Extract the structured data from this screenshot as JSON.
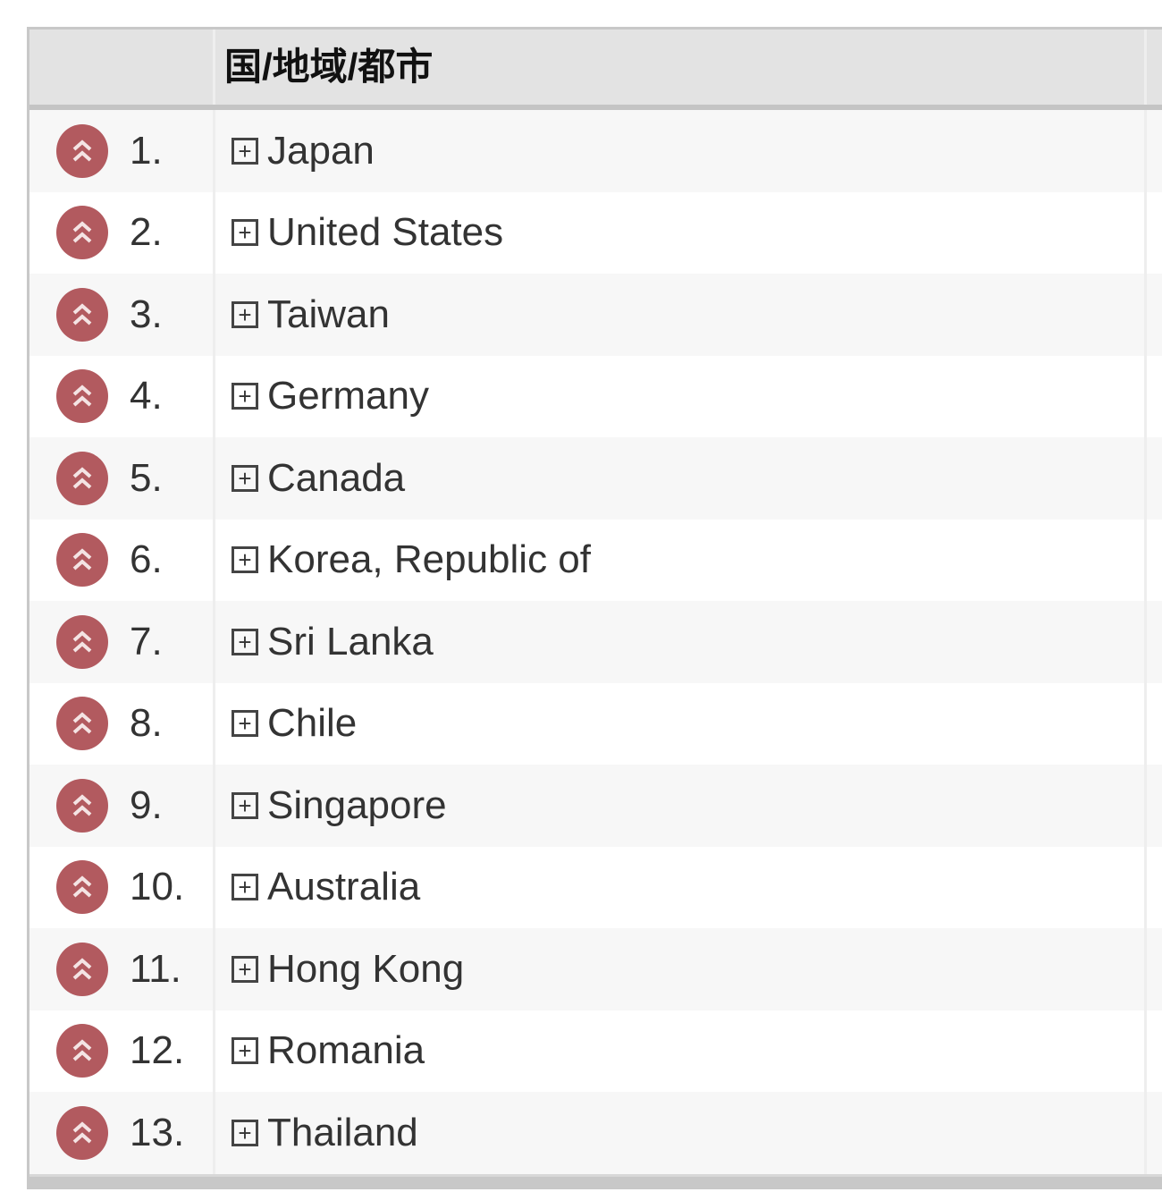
{
  "table": {
    "header": {
      "rank_col": "",
      "name_col": "国/地域/都市"
    },
    "row_icon": "double-chevron-up-icon",
    "icon_color": "#b25a5f",
    "rows": [
      {
        "rank": "1.",
        "name": "Japan"
      },
      {
        "rank": "2.",
        "name": "United States"
      },
      {
        "rank": "3.",
        "name": "Taiwan"
      },
      {
        "rank": "4.",
        "name": "Germany"
      },
      {
        "rank": "5.",
        "name": "Canada"
      },
      {
        "rank": "6.",
        "name": "Korea, Republic of"
      },
      {
        "rank": "7.",
        "name": "Sri Lanka"
      },
      {
        "rank": "8.",
        "name": "Chile"
      },
      {
        "rank": "9.",
        "name": "Singapore"
      },
      {
        "rank": "10.",
        "name": "Australia"
      },
      {
        "rank": "11.",
        "name": "Hong Kong"
      },
      {
        "rank": "12.",
        "name": "Romania"
      },
      {
        "rank": "13.",
        "name": "Thailand"
      }
    ]
  }
}
